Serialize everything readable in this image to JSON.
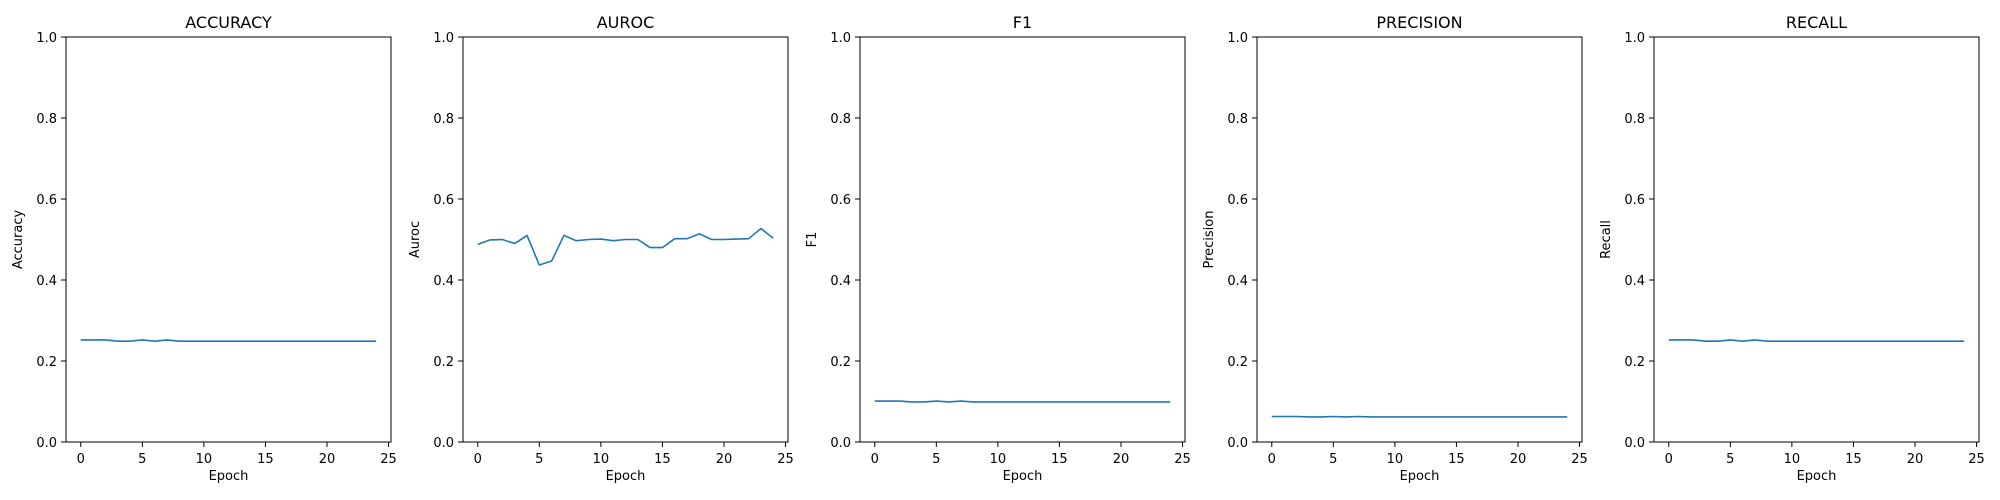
{
  "chart_data": [
    {
      "type": "line",
      "title": "ACCURACY",
      "xlabel": "Epoch",
      "ylabel": "Accuracy",
      "xlim": [
        -1.2,
        25.2
      ],
      "ylim": [
        0,
        1
      ],
      "xticks": [
        0,
        5,
        10,
        15,
        20,
        25
      ],
      "yticks": [
        0.0,
        0.2,
        0.4,
        0.6,
        0.8,
        1.0
      ],
      "x": [
        0,
        1,
        2,
        3,
        4,
        5,
        6,
        7,
        8,
        9,
        10,
        11,
        12,
        13,
        14,
        15,
        16,
        17,
        18,
        19,
        20,
        21,
        22,
        23,
        24
      ],
      "series": [
        {
          "color": "#1f77b4",
          "values": [
            0.252,
            0.252,
            0.252,
            0.249,
            0.249,
            0.252,
            0.249,
            0.252,
            0.249,
            0.249,
            0.249,
            0.249,
            0.249,
            0.249,
            0.249,
            0.249,
            0.249,
            0.249,
            0.249,
            0.249,
            0.249,
            0.249,
            0.249,
            0.249,
            0.249
          ]
        }
      ]
    },
    {
      "type": "line",
      "title": "AUROC",
      "xlabel": "Epoch",
      "ylabel": "Auroc",
      "xlim": [
        -1.2,
        25.2
      ],
      "ylim": [
        0,
        1
      ],
      "xticks": [
        0,
        5,
        10,
        15,
        20,
        25
      ],
      "yticks": [
        0.0,
        0.2,
        0.4,
        0.6,
        0.8,
        1.0
      ],
      "x": [
        0,
        1,
        2,
        3,
        4,
        5,
        6,
        7,
        8,
        9,
        10,
        11,
        12,
        13,
        14,
        15,
        16,
        17,
        18,
        19,
        20,
        21,
        22,
        23,
        24
      ],
      "series": [
        {
          "color": "#1f77b4",
          "values": [
            0.488,
            0.499,
            0.5,
            0.49,
            0.51,
            0.437,
            0.447,
            0.51,
            0.497,
            0.5,
            0.501,
            0.497,
            0.5,
            0.5,
            0.48,
            0.48,
            0.502,
            0.502,
            0.514,
            0.5,
            0.5,
            0.501,
            0.502,
            0.527,
            0.503
          ]
        }
      ]
    },
    {
      "type": "line",
      "title": "F1",
      "xlabel": "Epoch",
      "ylabel": "F1",
      "xlim": [
        -1.2,
        25.2
      ],
      "ylim": [
        0,
        1
      ],
      "xticks": [
        0,
        5,
        10,
        15,
        20,
        25
      ],
      "yticks": [
        0.0,
        0.2,
        0.4,
        0.6,
        0.8,
        1.0
      ],
      "x": [
        0,
        1,
        2,
        3,
        4,
        5,
        6,
        7,
        8,
        9,
        10,
        11,
        12,
        13,
        14,
        15,
        16,
        17,
        18,
        19,
        20,
        21,
        22,
        23,
        24
      ],
      "series": [
        {
          "color": "#1f77b4",
          "values": [
            0.101,
            0.101,
            0.101,
            0.099,
            0.099,
            0.101,
            0.099,
            0.101,
            0.099,
            0.099,
            0.099,
            0.099,
            0.099,
            0.099,
            0.099,
            0.099,
            0.099,
            0.099,
            0.099,
            0.099,
            0.099,
            0.099,
            0.099,
            0.099,
            0.099
          ]
        }
      ]
    },
    {
      "type": "line",
      "title": "PRECISION",
      "xlabel": "Epoch",
      "ylabel": "Precision",
      "xlim": [
        -1.2,
        25.2
      ],
      "ylim": [
        0,
        1
      ],
      "xticks": [
        0,
        5,
        10,
        15,
        20,
        25
      ],
      "yticks": [
        0.0,
        0.2,
        0.4,
        0.6,
        0.8,
        1.0
      ],
      "x": [
        0,
        1,
        2,
        3,
        4,
        5,
        6,
        7,
        8,
        9,
        10,
        11,
        12,
        13,
        14,
        15,
        16,
        17,
        18,
        19,
        20,
        21,
        22,
        23,
        24
      ],
      "series": [
        {
          "color": "#1f77b4",
          "values": [
            0.063,
            0.063,
            0.063,
            0.062,
            0.062,
            0.063,
            0.062,
            0.063,
            0.062,
            0.062,
            0.062,
            0.062,
            0.062,
            0.062,
            0.062,
            0.062,
            0.062,
            0.062,
            0.062,
            0.062,
            0.062,
            0.062,
            0.062,
            0.062,
            0.062
          ]
        }
      ]
    },
    {
      "type": "line",
      "title": "RECALL",
      "xlabel": "Epoch",
      "ylabel": "Recall",
      "xlim": [
        -1.2,
        25.2
      ],
      "ylim": [
        0,
        1
      ],
      "xticks": [
        0,
        5,
        10,
        15,
        20,
        25
      ],
      "yticks": [
        0.0,
        0.2,
        0.4,
        0.6,
        0.8,
        1.0
      ],
      "x": [
        0,
        1,
        2,
        3,
        4,
        5,
        6,
        7,
        8,
        9,
        10,
        11,
        12,
        13,
        14,
        15,
        16,
        17,
        18,
        19,
        20,
        21,
        22,
        23,
        24
      ],
      "series": [
        {
          "color": "#1f77b4",
          "values": [
            0.252,
            0.252,
            0.252,
            0.249,
            0.249,
            0.252,
            0.249,
            0.252,
            0.249,
            0.249,
            0.249,
            0.249,
            0.249,
            0.249,
            0.249,
            0.249,
            0.249,
            0.249,
            0.249,
            0.249,
            0.249,
            0.249,
            0.249,
            0.249,
            0.249
          ]
        }
      ]
    }
  ]
}
